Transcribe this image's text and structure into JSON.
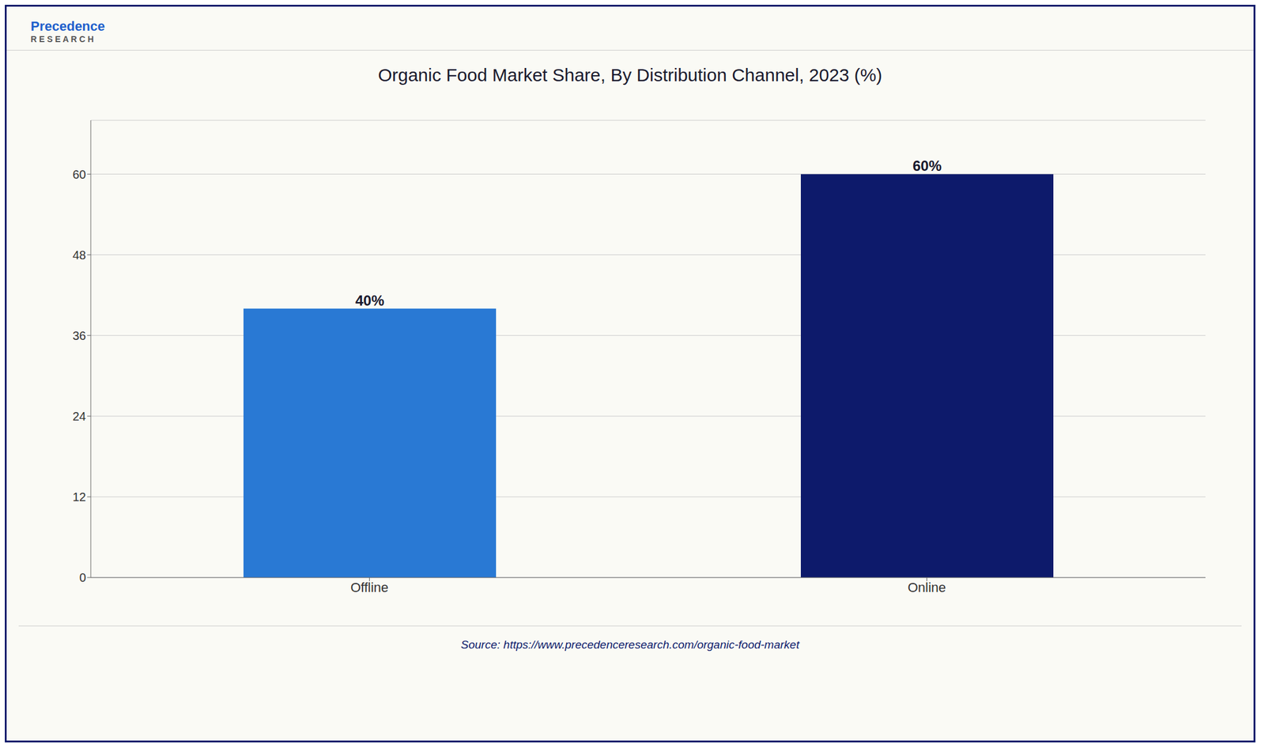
{
  "chart_data": {
    "type": "bar",
    "title": "Organic Food Market Share, By Distribution Channel, 2023 (%)",
    "categories": [
      "Offline",
      "Online"
    ],
    "values": [
      40,
      60
    ],
    "value_labels": [
      "40%",
      "60%"
    ],
    "data_labels": true,
    "colors": [
      "#2979d4",
      "#0d1a6b"
    ],
    "ylim": [
      0,
      68
    ],
    "yticks": [
      0,
      12,
      24,
      36,
      48,
      60
    ],
    "grid": true,
    "annotations": [
      "Precedence",
      "R E S E A R C H",
      "Source: https://www.precedenceresearch.com/organic-food-market"
    ]
  }
}
